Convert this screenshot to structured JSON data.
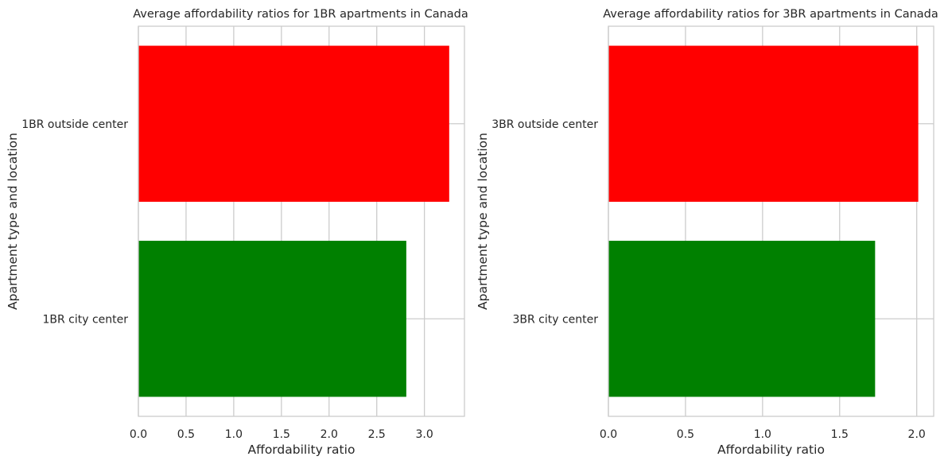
{
  "chart_data": [
    {
      "type": "bar",
      "orientation": "horizontal",
      "title": "Average affordability ratios for 1BR apartments in Canada",
      "xlabel": "Affordability ratio",
      "ylabel": "Apartment type and location",
      "categories": [
        "1BR city center",
        "1BR outside center"
      ],
      "values": [
        2.81,
        3.26
      ],
      "colors": [
        "#008000",
        "#ff0000"
      ],
      "xlim": [
        0,
        3.42
      ],
      "xticks": [
        0.0,
        0.5,
        1.0,
        1.5,
        2.0,
        2.5,
        3.0
      ],
      "xtick_labels": [
        "0.0",
        "0.5",
        "1.0",
        "1.5",
        "2.0",
        "2.5",
        "3.0"
      ],
      "grid": true
    },
    {
      "type": "bar",
      "orientation": "horizontal",
      "title": "Average affordability ratios for 3BR apartments in Canada",
      "xlabel": "Affordability ratio",
      "ylabel": "Apartment type and location",
      "categories": [
        "3BR city center",
        "3BR outside center"
      ],
      "values": [
        1.73,
        2.01
      ],
      "colors": [
        "#008000",
        "#ff0000"
      ],
      "xlim": [
        0,
        2.11
      ],
      "xticks": [
        0.0,
        0.5,
        1.0,
        1.5,
        2.0
      ],
      "xtick_labels": [
        "0.0",
        "0.5",
        "1.0",
        "1.5",
        "2.0"
      ],
      "grid": true
    }
  ]
}
